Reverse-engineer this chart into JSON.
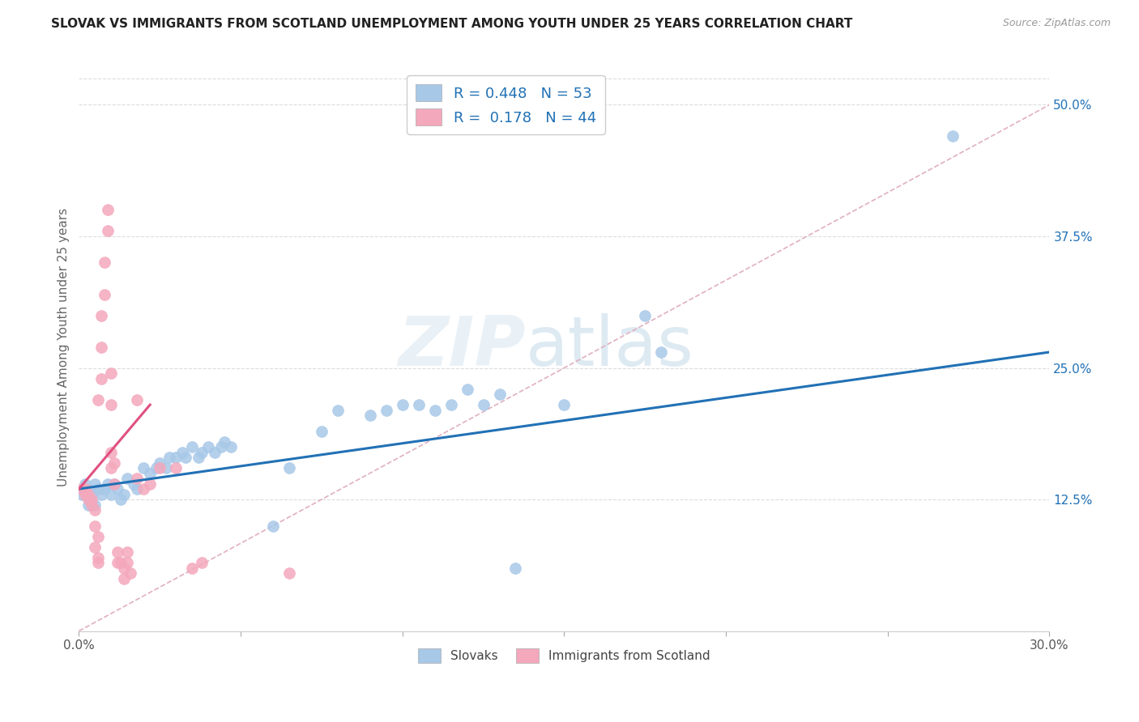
{
  "title": "SLOVAK VS IMMIGRANTS FROM SCOTLAND UNEMPLOYMENT AMONG YOUTH UNDER 25 YEARS CORRELATION CHART",
  "source": "Source: ZipAtlas.com",
  "ylabel": "Unemployment Among Youth under 25 years",
  "right_yticks": [
    "50.0%",
    "37.5%",
    "25.0%",
    "12.5%"
  ],
  "right_ytick_vals": [
    0.5,
    0.375,
    0.25,
    0.125
  ],
  "legend_blue_r": "R = 0.448",
  "legend_blue_n": "N = 53",
  "legend_pink_r": "R =  0.178",
  "legend_pink_n": "N = 44",
  "blue_color": "#a8c8e8",
  "pink_color": "#f4a8bc",
  "blue_line_color": "#2171b5",
  "pink_line_color": "#e05080",
  "dashed_line_color": "#cccccc",
  "watermark": "ZIPatlas",
  "xlim": [
    0.0,
    0.3
  ],
  "ylim": [
    0.0,
    0.54
  ],
  "blue_scatter": [
    [
      0.001,
      0.13
    ],
    [
      0.002,
      0.14
    ],
    [
      0.003,
      0.12
    ],
    [
      0.004,
      0.13
    ],
    [
      0.005,
      0.14
    ],
    [
      0.005,
      0.12
    ],
    [
      0.006,
      0.135
    ],
    [
      0.007,
      0.13
    ],
    [
      0.008,
      0.135
    ],
    [
      0.009,
      0.14
    ],
    [
      0.01,
      0.13
    ],
    [
      0.011,
      0.14
    ],
    [
      0.012,
      0.135
    ],
    [
      0.013,
      0.125
    ],
    [
      0.014,
      0.13
    ],
    [
      0.015,
      0.145
    ],
    [
      0.017,
      0.14
    ],
    [
      0.018,
      0.135
    ],
    [
      0.02,
      0.155
    ],
    [
      0.022,
      0.15
    ],
    [
      0.024,
      0.155
    ],
    [
      0.025,
      0.16
    ],
    [
      0.027,
      0.155
    ],
    [
      0.028,
      0.165
    ],
    [
      0.03,
      0.165
    ],
    [
      0.032,
      0.17
    ],
    [
      0.033,
      0.165
    ],
    [
      0.035,
      0.175
    ],
    [
      0.037,
      0.165
    ],
    [
      0.038,
      0.17
    ],
    [
      0.04,
      0.175
    ],
    [
      0.042,
      0.17
    ],
    [
      0.044,
      0.175
    ],
    [
      0.045,
      0.18
    ],
    [
      0.047,
      0.175
    ],
    [
      0.06,
      0.1
    ],
    [
      0.065,
      0.155
    ],
    [
      0.075,
      0.19
    ],
    [
      0.08,
      0.21
    ],
    [
      0.09,
      0.205
    ],
    [
      0.095,
      0.21
    ],
    [
      0.1,
      0.215
    ],
    [
      0.105,
      0.215
    ],
    [
      0.11,
      0.21
    ],
    [
      0.115,
      0.215
    ],
    [
      0.12,
      0.23
    ],
    [
      0.125,
      0.215
    ],
    [
      0.13,
      0.225
    ],
    [
      0.135,
      0.06
    ],
    [
      0.15,
      0.215
    ],
    [
      0.175,
      0.3
    ],
    [
      0.18,
      0.265
    ],
    [
      0.27,
      0.47
    ]
  ],
  "pink_scatter": [
    [
      0.001,
      0.135
    ],
    [
      0.002,
      0.135
    ],
    [
      0.002,
      0.13
    ],
    [
      0.003,
      0.13
    ],
    [
      0.003,
      0.125
    ],
    [
      0.004,
      0.125
    ],
    [
      0.004,
      0.12
    ],
    [
      0.005,
      0.115
    ],
    [
      0.005,
      0.1
    ],
    [
      0.005,
      0.08
    ],
    [
      0.006,
      0.09
    ],
    [
      0.006,
      0.07
    ],
    [
      0.006,
      0.065
    ],
    [
      0.006,
      0.22
    ],
    [
      0.007,
      0.24
    ],
    [
      0.007,
      0.27
    ],
    [
      0.007,
      0.3
    ],
    [
      0.008,
      0.32
    ],
    [
      0.008,
      0.35
    ],
    [
      0.009,
      0.38
    ],
    [
      0.009,
      0.4
    ],
    [
      0.01,
      0.155
    ],
    [
      0.01,
      0.17
    ],
    [
      0.01,
      0.215
    ],
    [
      0.01,
      0.245
    ],
    [
      0.011,
      0.14
    ],
    [
      0.011,
      0.16
    ],
    [
      0.012,
      0.065
    ],
    [
      0.012,
      0.075
    ],
    [
      0.013,
      0.065
    ],
    [
      0.014,
      0.05
    ],
    [
      0.014,
      0.06
    ],
    [
      0.015,
      0.065
    ],
    [
      0.015,
      0.075
    ],
    [
      0.016,
      0.055
    ],
    [
      0.018,
      0.145
    ],
    [
      0.018,
      0.22
    ],
    [
      0.02,
      0.135
    ],
    [
      0.022,
      0.14
    ],
    [
      0.025,
      0.155
    ],
    [
      0.03,
      0.155
    ],
    [
      0.035,
      0.06
    ],
    [
      0.038,
      0.065
    ],
    [
      0.065,
      0.055
    ]
  ],
  "blue_line_x": [
    0.0,
    0.3
  ],
  "blue_line_y": [
    0.135,
    0.265
  ],
  "pink_line_x": [
    0.0,
    0.022
  ],
  "pink_line_y": [
    0.135,
    0.215
  ],
  "dashed_line_x": [
    0.0,
    0.3
  ],
  "dashed_line_y": [
    0.0,
    0.5
  ]
}
